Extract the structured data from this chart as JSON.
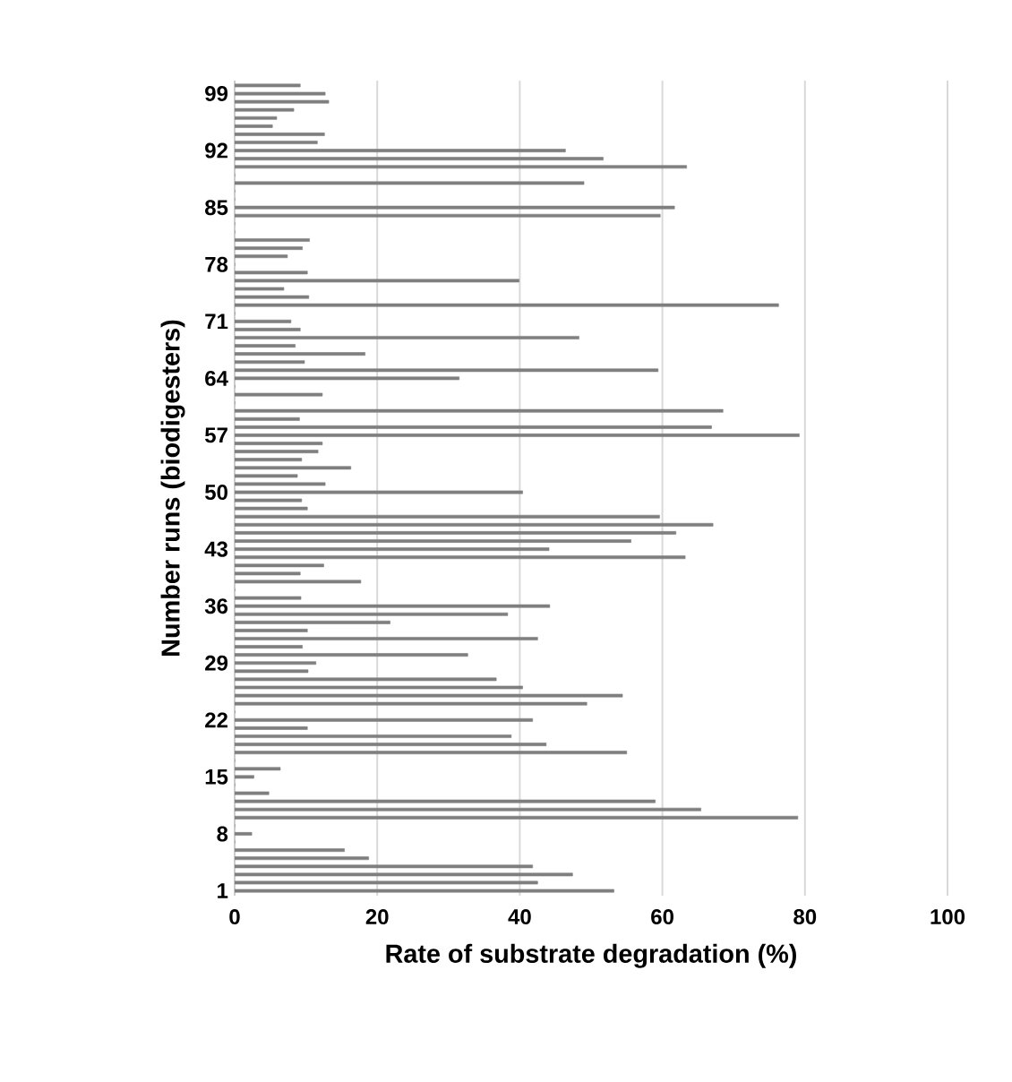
{
  "chart_data": {
    "type": "bar",
    "orientation": "horizontal",
    "xlabel": "Rate of substrate degradation (%)",
    "ylabel": "Number runs (biodigesters)",
    "categories": [
      null,
      "99",
      null,
      null,
      null,
      null,
      null,
      null,
      "92",
      null,
      null,
      null,
      null,
      null,
      null,
      "85",
      null,
      null,
      null,
      null,
      null,
      null,
      "78",
      null,
      null,
      null,
      null,
      null,
      null,
      "71",
      null,
      null,
      null,
      null,
      null,
      null,
      "64",
      null,
      null,
      null,
      null,
      null,
      null,
      "57",
      null,
      null,
      null,
      null,
      null,
      null,
      "50",
      null,
      null,
      null,
      null,
      null,
      null,
      "43",
      null,
      null,
      null,
      null,
      null,
      null,
      "36",
      null,
      null,
      null,
      null,
      null,
      null,
      "29",
      null,
      null,
      null,
      null,
      null,
      null,
      "22",
      null,
      null,
      null,
      null,
      null,
      null,
      "15",
      null,
      null,
      null,
      null,
      null,
      null,
      "8",
      null,
      null,
      null,
      null,
      null,
      null,
      "1"
    ],
    "values": [
      9.2,
      12.7,
      13.2,
      8.3,
      5.9,
      5.3,
      12.6,
      11.6,
      46.4,
      51.7,
      63.4,
      0,
      49,
      0,
      0,
      61.7,
      59.7,
      0,
      0,
      10.5,
      9.5,
      7.4,
      0,
      10.2,
      39.9,
      6.9,
      10.4,
      76.3,
      0,
      7.9,
      9.2,
      48.3,
      8.5,
      18.3,
      9.8,
      59.4,
      31.5,
      0,
      12.3,
      0,
      68.5,
      9.1,
      66.9,
      79.2,
      12.3,
      11.7,
      9.4,
      16.3,
      8.8,
      12.7,
      40.4,
      9.4,
      10.2,
      59.6,
      67.1,
      61.9,
      55.6,
      44.1,
      63.2,
      12.5,
      9.2,
      17.7,
      0,
      9.3,
      44.2,
      38.3,
      21.8,
      10.2,
      42.5,
      9.5,
      32.7,
      11.4,
      10.3,
      36.7,
      40.4,
      54.4,
      49.4,
      0,
      41.8,
      10.2,
      38.8,
      43.7,
      55,
      0,
      6.4,
      2.7,
      0,
      4.8,
      59,
      65.4,
      79,
      0,
      2.4,
      0,
      15.4,
      18.8,
      41.8,
      47.4,
      42.5,
      53.2
    ],
    "color": "#7f7f7f",
    "xlim": [
      0,
      100
    ],
    "xticks": [
      0,
      20,
      40,
      60,
      80,
      100
    ],
    "grid": "x"
  }
}
